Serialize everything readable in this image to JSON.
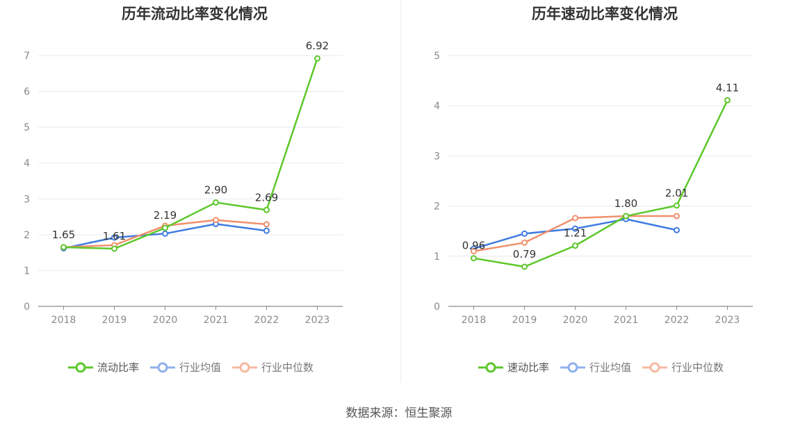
{
  "source": "数据来源：恒生聚源",
  "colors": {
    "main": "#5cc72b",
    "avg": "#3f7be0",
    "median": "#f0906c",
    "grid": "#e6e9f2",
    "axis": "#8a8a8a"
  },
  "chart_data": [
    {
      "type": "line",
      "title": "历年流动比率变化情况",
      "categories": [
        "2018",
        "2019",
        "2020",
        "2021",
        "2022",
        "2023"
      ],
      "ylim": [
        0,
        7
      ],
      "yticks": [
        "0",
        "1",
        "2",
        "3",
        "4",
        "5",
        "6",
        "7"
      ],
      "grid": true,
      "legend_position": "bottom",
      "series": [
        {
          "name": "流动比率",
          "values": [
            1.65,
            1.61,
            2.19,
            2.9,
            2.69,
            6.92
          ],
          "labels": [
            "1.65",
            "1.61",
            "2.19",
            "2.90",
            "2.69",
            "6.92"
          ]
        },
        {
          "name": "行业均值",
          "values": [
            1.62,
            1.92,
            2.03,
            2.3,
            2.11,
            null
          ]
        },
        {
          "name": "行业中位数",
          "values": [
            1.65,
            1.71,
            2.25,
            2.41,
            2.29,
            null
          ]
        }
      ]
    },
    {
      "type": "line",
      "title": "历年速动比率变化情况",
      "categories": [
        "2018",
        "2019",
        "2020",
        "2021",
        "2022",
        "2023"
      ],
      "ylim": [
        0,
        5
      ],
      "yticks": [
        "0",
        "1",
        "2",
        "3",
        "4",
        "5"
      ],
      "grid": true,
      "legend_position": "bottom",
      "series": [
        {
          "name": "速动比率",
          "values": [
            0.96,
            0.79,
            1.21,
            1.8,
            2.01,
            4.11
          ],
          "labels": [
            "0.96",
            "0.79",
            "1.21",
            "1.80",
            "2.01",
            "4.11"
          ]
        },
        {
          "name": "行业均值",
          "values": [
            1.15,
            1.45,
            1.55,
            1.74,
            1.52,
            null
          ]
        },
        {
          "name": "行业中位数",
          "values": [
            1.1,
            1.27,
            1.76,
            1.8,
            1.8,
            null
          ]
        }
      ]
    }
  ]
}
